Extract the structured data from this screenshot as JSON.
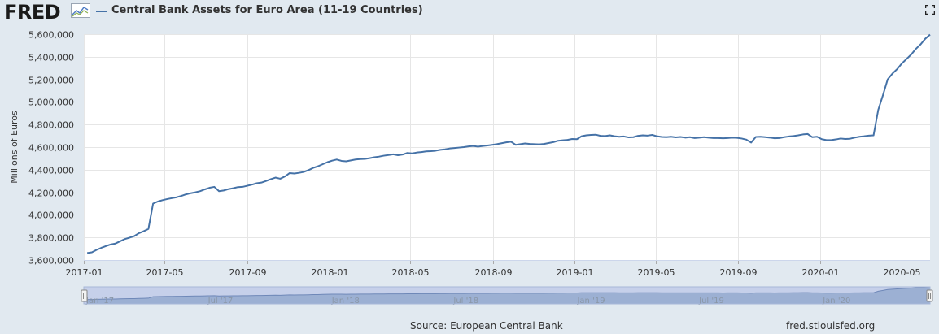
{
  "header": {
    "logo_text": "FRED",
    "title": "Central Bank Assets for Euro Area (11-19 Countries)"
  },
  "icons": {
    "logo_mark": "mini-chart-icon",
    "fullscreen": "fullscreen-icon"
  },
  "colors": {
    "series": "#4572a7",
    "background": "#e1e9f0",
    "plot": "#ffffff",
    "navigator_fill": "#9cb0d3",
    "navigator_mask": "#c6d0ea"
  },
  "footer": {
    "source": "Source: European Central Bank",
    "site": "fred.stlouisfed.org"
  },
  "navigator": {
    "labels": [
      "Jan '17",
      "Jul '17",
      "Jan '18",
      "Jul '18",
      "Jan '19",
      "Jul '19",
      "Jan '20"
    ]
  },
  "chart_data": {
    "type": "line",
    "title": "Central Bank Assets for Euro Area (11-19 Countries)",
    "ylabel": "Millions of Euros",
    "xlabel": "",
    "ylim": [
      3600000,
      5600000
    ],
    "yticks": [
      "3,600,000",
      "3,800,000",
      "4,000,000",
      "4,200,000",
      "4,400,000",
      "4,600,000",
      "4,800,000",
      "5,000,000",
      "5,200,000",
      "5,400,000",
      "5,600,000"
    ],
    "xticks": [
      "2017-01",
      "2017-05",
      "2017-09",
      "2018-01",
      "2018-05",
      "2018-09",
      "2019-01",
      "2019-05",
      "2019-09",
      "2020-01",
      "2020-05"
    ],
    "xlim": [
      "2017-01-01",
      "2020-06-12"
    ],
    "grid": true,
    "series": [
      {
        "name": "Central Bank Assets for Euro Area (11-19 Countries)",
        "color": "#4572a7",
        "points": [
          [
            "2017-01-06",
            3662000
          ],
          [
            "2017-01-13",
            3668000
          ],
          [
            "2017-01-20",
            3690000
          ],
          [
            "2017-01-27",
            3708000
          ],
          [
            "2017-02-03",
            3724000
          ],
          [
            "2017-02-10",
            3738000
          ],
          [
            "2017-02-17",
            3746000
          ],
          [
            "2017-02-24",
            3766000
          ],
          [
            "2017-03-03",
            3786000
          ],
          [
            "2017-03-10",
            3798000
          ],
          [
            "2017-03-17",
            3812000
          ],
          [
            "2017-03-24",
            3838000
          ],
          [
            "2017-03-31",
            3855000
          ],
          [
            "2017-04-07",
            3875000
          ],
          [
            "2017-04-14",
            4100000
          ],
          [
            "2017-04-21",
            4118000
          ],
          [
            "2017-04-28",
            4130000
          ],
          [
            "2017-05-05",
            4140000
          ],
          [
            "2017-05-12",
            4148000
          ],
          [
            "2017-05-19",
            4156000
          ],
          [
            "2017-05-26",
            4168000
          ],
          [
            "2017-06-02",
            4182000
          ],
          [
            "2017-06-09",
            4192000
          ],
          [
            "2017-06-16",
            4200000
          ],
          [
            "2017-06-23",
            4210000
          ],
          [
            "2017-06-30",
            4226000
          ],
          [
            "2017-07-07",
            4240000
          ],
          [
            "2017-07-14",
            4248000
          ],
          [
            "2017-07-21",
            4210000
          ],
          [
            "2017-07-28",
            4216000
          ],
          [
            "2017-08-04",
            4228000
          ],
          [
            "2017-08-11",
            4236000
          ],
          [
            "2017-08-18",
            4246000
          ],
          [
            "2017-08-25",
            4248000
          ],
          [
            "2017-09-01",
            4258000
          ],
          [
            "2017-09-08",
            4268000
          ],
          [
            "2017-09-15",
            4280000
          ],
          [
            "2017-09-22",
            4286000
          ],
          [
            "2017-09-29",
            4300000
          ],
          [
            "2017-10-06",
            4316000
          ],
          [
            "2017-10-13",
            4330000
          ],
          [
            "2017-10-20",
            4320000
          ],
          [
            "2017-10-27",
            4340000
          ],
          [
            "2017-11-03",
            4370000
          ],
          [
            "2017-11-10",
            4366000
          ],
          [
            "2017-11-17",
            4372000
          ],
          [
            "2017-11-24",
            4380000
          ],
          [
            "2017-12-01",
            4396000
          ],
          [
            "2017-12-08",
            4416000
          ],
          [
            "2017-12-15",
            4430000
          ],
          [
            "2017-12-22",
            4448000
          ],
          [
            "2017-12-29",
            4466000
          ],
          [
            "2018-01-05",
            4480000
          ],
          [
            "2018-01-12",
            4490000
          ],
          [
            "2018-01-19",
            4478000
          ],
          [
            "2018-01-26",
            4474000
          ],
          [
            "2018-02-02",
            4482000
          ],
          [
            "2018-02-09",
            4490000
          ],
          [
            "2018-02-16",
            4494000
          ],
          [
            "2018-02-23",
            4496000
          ],
          [
            "2018-03-02",
            4502000
          ],
          [
            "2018-03-09",
            4510000
          ],
          [
            "2018-03-16",
            4516000
          ],
          [
            "2018-03-23",
            4524000
          ],
          [
            "2018-03-30",
            4530000
          ],
          [
            "2018-04-06",
            4536000
          ],
          [
            "2018-04-13",
            4528000
          ],
          [
            "2018-04-20",
            4534000
          ],
          [
            "2018-04-27",
            4548000
          ],
          [
            "2018-05-04",
            4544000
          ],
          [
            "2018-05-11",
            4552000
          ],
          [
            "2018-05-18",
            4556000
          ],
          [
            "2018-05-25",
            4562000
          ],
          [
            "2018-06-01",
            4564000
          ],
          [
            "2018-06-08",
            4568000
          ],
          [
            "2018-06-15",
            4576000
          ],
          [
            "2018-06-22",
            4580000
          ],
          [
            "2018-06-29",
            4588000
          ],
          [
            "2018-07-06",
            4592000
          ],
          [
            "2018-07-13",
            4596000
          ],
          [
            "2018-07-20",
            4600000
          ],
          [
            "2018-07-27",
            4606000
          ],
          [
            "2018-08-03",
            4610000
          ],
          [
            "2018-08-10",
            4604000
          ],
          [
            "2018-08-17",
            4610000
          ],
          [
            "2018-08-24",
            4614000
          ],
          [
            "2018-08-31",
            4620000
          ],
          [
            "2018-09-07",
            4626000
          ],
          [
            "2018-09-14",
            4634000
          ],
          [
            "2018-09-21",
            4642000
          ],
          [
            "2018-09-28",
            4648000
          ],
          [
            "2018-10-05",
            4620000
          ],
          [
            "2018-10-12",
            4626000
          ],
          [
            "2018-10-19",
            4632000
          ],
          [
            "2018-10-26",
            4628000
          ],
          [
            "2018-11-02",
            4626000
          ],
          [
            "2018-11-09",
            4624000
          ],
          [
            "2018-11-16",
            4628000
          ],
          [
            "2018-11-23",
            4636000
          ],
          [
            "2018-11-30",
            4644000
          ],
          [
            "2018-12-07",
            4656000
          ],
          [
            "2018-12-14",
            4660000
          ],
          [
            "2018-12-21",
            4664000
          ],
          [
            "2018-12-28",
            4672000
          ],
          [
            "2019-01-04",
            4670000
          ],
          [
            "2019-01-11",
            4696000
          ],
          [
            "2019-01-18",
            4704000
          ],
          [
            "2019-01-25",
            4708000
          ],
          [
            "2019-02-01",
            4710000
          ],
          [
            "2019-02-08",
            4700000
          ],
          [
            "2019-02-15",
            4698000
          ],
          [
            "2019-02-22",
            4704000
          ],
          [
            "2019-03-01",
            4696000
          ],
          [
            "2019-03-08",
            4692000
          ],
          [
            "2019-03-15",
            4694000
          ],
          [
            "2019-03-22",
            4686000
          ],
          [
            "2019-03-29",
            4688000
          ],
          [
            "2019-04-05",
            4700000
          ],
          [
            "2019-04-12",
            4704000
          ],
          [
            "2019-04-19",
            4702000
          ],
          [
            "2019-04-26",
            4708000
          ],
          [
            "2019-05-03",
            4696000
          ],
          [
            "2019-05-10",
            4690000
          ],
          [
            "2019-05-17",
            4688000
          ],
          [
            "2019-05-24",
            4692000
          ],
          [
            "2019-05-31",
            4686000
          ],
          [
            "2019-06-07",
            4690000
          ],
          [
            "2019-06-14",
            4684000
          ],
          [
            "2019-06-21",
            4688000
          ],
          [
            "2019-06-28",
            4680000
          ],
          [
            "2019-07-05",
            4684000
          ],
          [
            "2019-07-12",
            4688000
          ],
          [
            "2019-07-19",
            4684000
          ],
          [
            "2019-07-26",
            4680000
          ],
          [
            "2019-08-02",
            4680000
          ],
          [
            "2019-08-09",
            4678000
          ],
          [
            "2019-08-16",
            4680000
          ],
          [
            "2019-08-23",
            4684000
          ],
          [
            "2019-08-30",
            4682000
          ],
          [
            "2019-09-06",
            4676000
          ],
          [
            "2019-09-13",
            4666000
          ],
          [
            "2019-09-20",
            4640000
          ],
          [
            "2019-09-27",
            4690000
          ],
          [
            "2019-10-04",
            4692000
          ],
          [
            "2019-10-11",
            4688000
          ],
          [
            "2019-10-18",
            4684000
          ],
          [
            "2019-10-25",
            4678000
          ],
          [
            "2019-11-01",
            4680000
          ],
          [
            "2019-11-08",
            4688000
          ],
          [
            "2019-11-15",
            4694000
          ],
          [
            "2019-11-22",
            4698000
          ],
          [
            "2019-11-29",
            4704000
          ],
          [
            "2019-12-06",
            4712000
          ],
          [
            "2019-12-13",
            4716000
          ],
          [
            "2019-12-20",
            4688000
          ],
          [
            "2019-12-27",
            4692000
          ],
          [
            "2020-01-03",
            4670000
          ],
          [
            "2020-01-10",
            4662000
          ],
          [
            "2020-01-17",
            4662000
          ],
          [
            "2020-01-24",
            4668000
          ],
          [
            "2020-01-31",
            4676000
          ],
          [
            "2020-02-07",
            4672000
          ],
          [
            "2020-02-14",
            4674000
          ],
          [
            "2020-02-21",
            4684000
          ],
          [
            "2020-02-28",
            4692000
          ],
          [
            "2020-03-06",
            4696000
          ],
          [
            "2020-03-13",
            4702000
          ],
          [
            "2020-03-20",
            4704000
          ],
          [
            "2020-03-27",
            4930000
          ],
          [
            "2020-04-03",
            5060000
          ],
          [
            "2020-04-10",
            5200000
          ],
          [
            "2020-04-17",
            5250000
          ],
          [
            "2020-04-24",
            5290000
          ],
          [
            "2020-05-01",
            5340000
          ],
          [
            "2020-05-08",
            5380000
          ],
          [
            "2020-05-15",
            5420000
          ],
          [
            "2020-05-22",
            5470000
          ],
          [
            "2020-05-29",
            5510000
          ],
          [
            "2020-06-05",
            5560000
          ],
          [
            "2020-06-12",
            5596000
          ]
        ]
      }
    ]
  }
}
